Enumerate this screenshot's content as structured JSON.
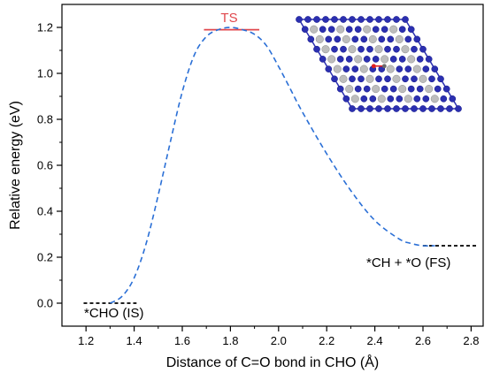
{
  "chart_data": {
    "type": "line",
    "xlabel": "Distance of C=O bond in CHO (Å)",
    "ylabel": "Relative energy (eV)",
    "xlim": [
      1.1,
      2.85
    ],
    "ylim": [
      -0.1,
      1.3
    ],
    "x_ticks": [
      "1.2",
      "1.4",
      "1.6",
      "1.8",
      "2.0",
      "2.2",
      "2.4",
      "2.6",
      "2.8"
    ],
    "y_ticks": [
      "0.0",
      "0.2",
      "0.4",
      "0.6",
      "0.8",
      "1.0",
      "1.2"
    ],
    "x_tick_values": [
      1.2,
      1.4,
      1.6,
      1.8,
      2.0,
      2.2,
      2.4,
      2.6,
      2.8
    ],
    "y_tick_values": [
      0.0,
      0.2,
      0.4,
      0.6,
      0.8,
      1.0,
      1.2
    ],
    "grid": false,
    "series": [
      {
        "style": "dashed",
        "color": "#2a6fd6",
        "x": [
          1.3,
          1.35,
          1.4,
          1.45,
          1.5,
          1.55,
          1.6,
          1.65,
          1.7,
          1.75,
          1.8,
          1.85,
          1.9,
          1.95,
          2.0,
          2.05,
          2.1,
          2.2,
          2.3,
          2.4,
          2.5,
          2.55,
          2.6,
          2.65
        ],
        "y": [
          0.0,
          0.03,
          0.11,
          0.26,
          0.47,
          0.7,
          0.92,
          1.08,
          1.16,
          1.19,
          1.2,
          1.19,
          1.17,
          1.12,
          1.03,
          0.93,
          0.83,
          0.65,
          0.49,
          0.36,
          0.28,
          0.26,
          0.25,
          0.25
        ]
      }
    ],
    "levels": [
      {
        "label": "*CHO (IS)",
        "x": [
          1.19,
          1.41
        ],
        "y": 0.0,
        "color": "#000000",
        "style": "dashed"
      },
      {
        "label": "TS",
        "x": [
          1.69,
          1.92
        ],
        "y": 1.19,
        "color": "#e0474c",
        "style": "solid"
      },
      {
        "label": "*CH + *O (FS)",
        "x": [
          2.6,
          2.83
        ],
        "y": 0.25,
        "color": "#000000",
        "style": "dashed"
      }
    ]
  },
  "colors": {
    "curve": "#2a6fd6",
    "ts": "#e0474c",
    "axis": "#000000",
    "slab_blue": "#2b2fb0",
    "slab_grey": "#bdbdbd",
    "adsorbate": "#e02020"
  },
  "inset": {
    "icon": "catalyst-slab-structure-icon"
  }
}
